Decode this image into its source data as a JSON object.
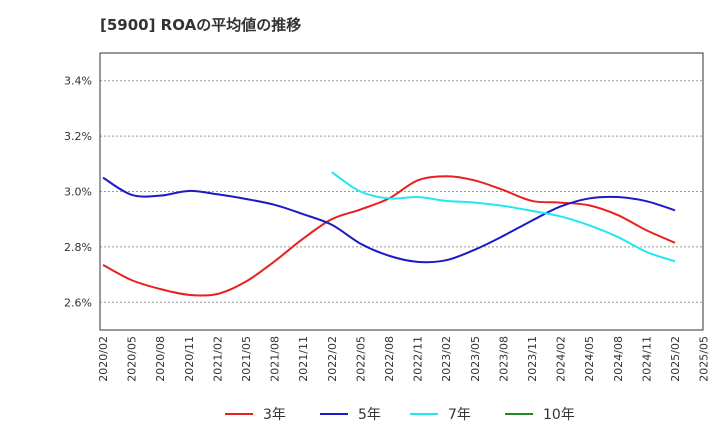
{
  "chart_data": {
    "type": "line",
    "title": "[5900]  ROAの平均値の推移",
    "xlabel": "",
    "ylabel": "",
    "x_ticks": [
      "2020/02",
      "2020/05",
      "2020/08",
      "2020/11",
      "2021/02",
      "2021/05",
      "2021/08",
      "2021/11",
      "2022/02",
      "2022/05",
      "2022/08",
      "2022/11",
      "2023/02",
      "2023/05",
      "2023/08",
      "2023/11",
      "2024/02",
      "2024/05",
      "2024/08",
      "2024/11",
      "2025/02",
      "2025/05"
    ],
    "y_ticks": [
      "2.6%",
      "2.8%",
      "3.0%",
      "3.2%",
      "3.4%"
    ],
    "y_tick_values": [
      2.6,
      2.8,
      3.0,
      3.2,
      3.4
    ],
    "ylim": [
      2.5,
      3.5
    ],
    "grid": "horizontal dashed",
    "legend_position": "bottom",
    "series": [
      {
        "name": "3年",
        "color": "#e8201e",
        "x": [
          "2020/02",
          "2020/05",
          "2020/08",
          "2020/11",
          "2021/02",
          "2021/05",
          "2021/08",
          "2021/11",
          "2022/02",
          "2022/05",
          "2022/08",
          "2022/11",
          "2023/02",
          "2023/05",
          "2023/08",
          "2023/11",
          "2024/02",
          "2024/05",
          "2024/08",
          "2024/11",
          "2025/02"
        ],
        "values": [
          2.735,
          2.68,
          2.648,
          2.627,
          2.63,
          2.675,
          2.748,
          2.83,
          2.9,
          2.935,
          2.975,
          3.04,
          3.055,
          3.04,
          3.005,
          2.966,
          2.96,
          2.95,
          2.915,
          2.86,
          2.815
        ]
      },
      {
        "name": "5年",
        "color": "#1a1ac8",
        "x": [
          "2020/02",
          "2020/05",
          "2020/08",
          "2020/11",
          "2021/02",
          "2021/05",
          "2021/08",
          "2021/11",
          "2022/02",
          "2022/05",
          "2022/08",
          "2022/11",
          "2023/02",
          "2023/05",
          "2023/08",
          "2023/11",
          "2024/02",
          "2024/05",
          "2024/08",
          "2024/11",
          "2025/02"
        ],
        "values": [
          3.05,
          2.988,
          2.985,
          3.002,
          2.99,
          2.973,
          2.952,
          2.918,
          2.88,
          2.812,
          2.768,
          2.746,
          2.752,
          2.79,
          2.84,
          2.895,
          2.946,
          2.975,
          2.98,
          2.965,
          2.932
        ]
      },
      {
        "name": "7年",
        "color": "#22e6f0",
        "x": [
          "2022/02",
          "2022/05",
          "2022/08",
          "2022/11",
          "2023/02",
          "2023/05",
          "2023/08",
          "2023/11",
          "2024/02",
          "2024/05",
          "2024/08",
          "2024/11",
          "2025/02"
        ],
        "values": [
          3.07,
          3.0,
          2.975,
          2.98,
          2.966,
          2.96,
          2.948,
          2.93,
          2.91,
          2.878,
          2.836,
          2.782,
          2.748
        ]
      },
      {
        "name": "10年",
        "color": "#1e8c1e",
        "x": [],
        "values": []
      }
    ]
  }
}
